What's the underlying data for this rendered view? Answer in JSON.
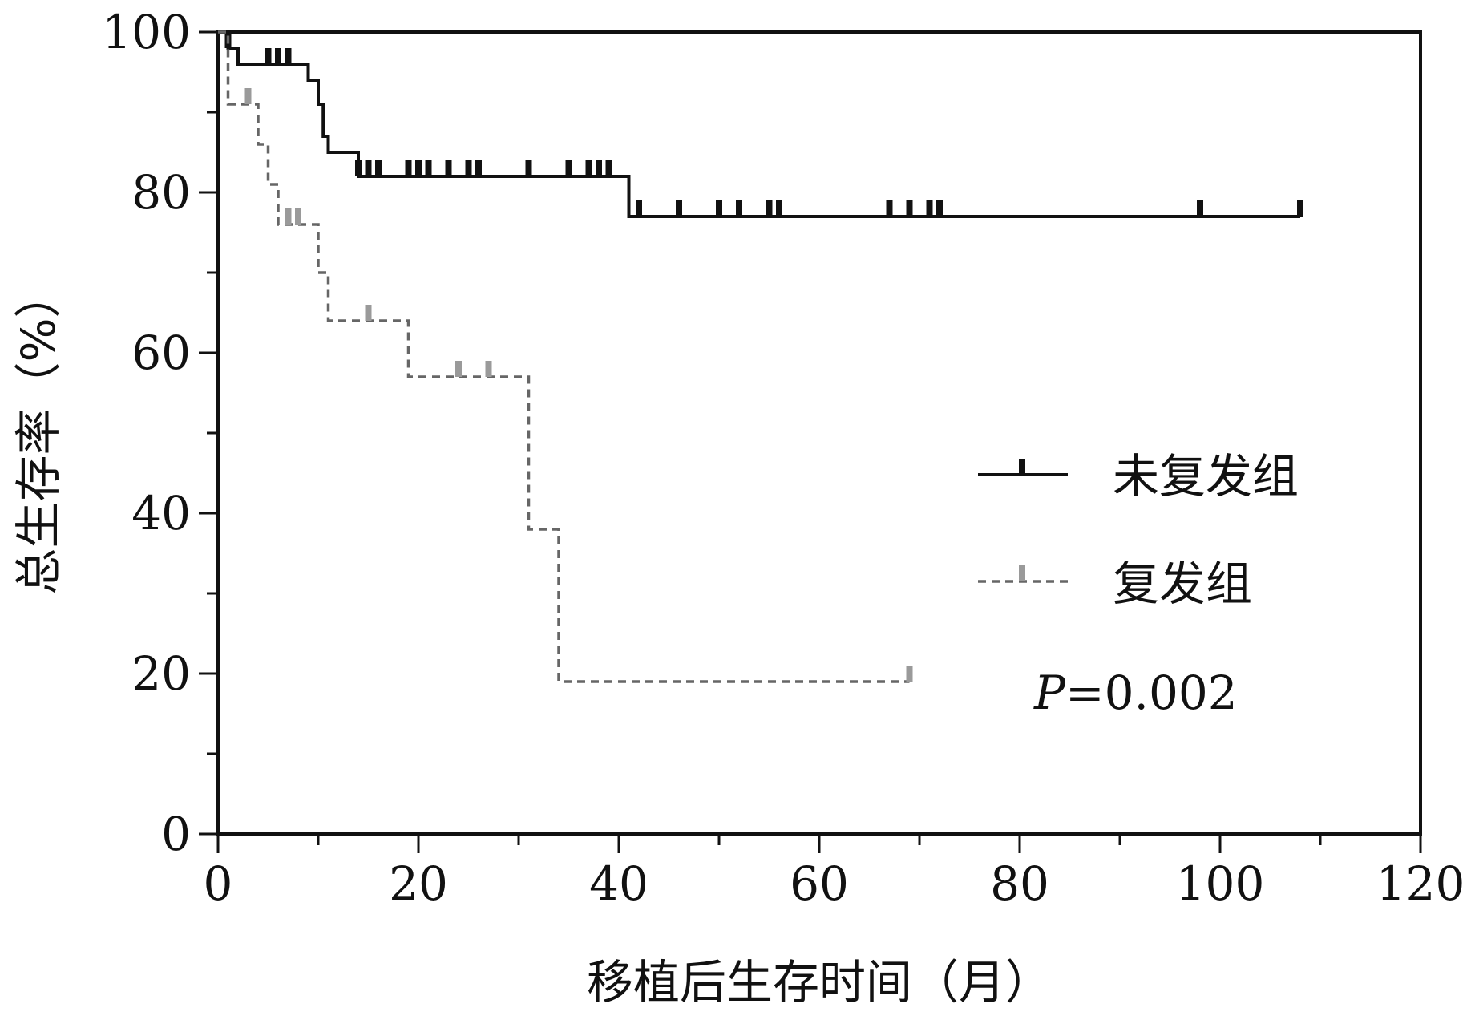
{
  "chart_data": {
    "type": "line",
    "subtype": "kaplan-meier",
    "title": "",
    "xlabel": "移植后生存时间（月）",
    "ylabel": "总生存率（%）",
    "xlim": [
      0,
      120
    ],
    "ylim": [
      0,
      100
    ],
    "xticks": [
      0,
      20,
      40,
      60,
      80,
      100,
      120
    ],
    "yticks": [
      0,
      20,
      40,
      60,
      80,
      100
    ],
    "x_minor_step": 10,
    "y_minor_step": 10,
    "grid": false,
    "legend_position": "right-middle",
    "annotation": {
      "p_italic": "P",
      "p_rest": "=0.002"
    },
    "series": [
      {
        "name": "未复发组",
        "color": "#111111",
        "censor_color": "#111111",
        "dashed": false,
        "steps": [
          [
            0,
            100
          ],
          [
            1,
            98
          ],
          [
            2,
            96
          ],
          [
            8,
            96
          ],
          [
            9,
            94
          ],
          [
            10,
            91
          ],
          [
            10.5,
            87
          ],
          [
            11,
            85
          ],
          [
            14,
            82
          ],
          [
            41,
            77
          ],
          [
            108,
            77
          ]
        ],
        "censored_times": [
          1,
          5,
          6,
          7,
          14,
          15,
          16,
          19,
          20,
          21,
          23,
          25,
          26,
          31,
          35,
          37,
          38,
          39,
          42,
          46,
          50,
          52,
          55,
          56,
          67,
          69,
          71,
          72,
          98,
          108
        ]
      },
      {
        "name": "复发组",
        "color": "#666666",
        "censor_color": "#9a9a9a",
        "dashed": true,
        "steps": [
          [
            0,
            100
          ],
          [
            1,
            91
          ],
          [
            3,
            91
          ],
          [
            4,
            86
          ],
          [
            5,
            81
          ],
          [
            6,
            76
          ],
          [
            10,
            70
          ],
          [
            11,
            64
          ],
          [
            19,
            57
          ],
          [
            31,
            38
          ],
          [
            34,
            19
          ],
          [
            69,
            19
          ]
        ],
        "censored_times": [
          3,
          7,
          8,
          15,
          24,
          27,
          69
        ]
      }
    ]
  }
}
